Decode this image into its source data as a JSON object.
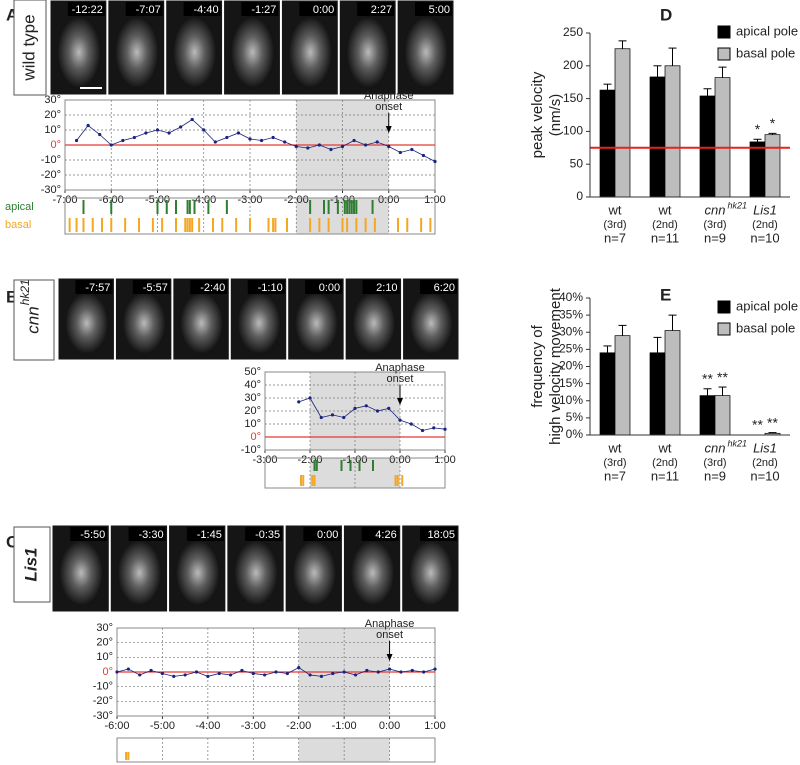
{
  "panels": [
    {
      "label": "A",
      "genotype": "wild type",
      "frames": [
        "-12:22",
        "-7:07",
        "-4:40",
        "-1:27",
        "0:00",
        "2:27",
        "5:00"
      ]
    },
    {
      "label": "B",
      "genotype": "cnn",
      "genotype_sup": "hk21",
      "frames": [
        "-7:57",
        "-5:57",
        "-2:40",
        "-1:10",
        "0:00",
        "2:10",
        "6:20"
      ]
    },
    {
      "label": "C",
      "genotype": "Lis1",
      "frames": [
        "-5:50",
        "-3:30",
        "-1:45",
        "-0:35",
        "0:00",
        "4:26",
        "18:05"
      ]
    }
  ],
  "chart_data": [
    {
      "type": "line",
      "x": [
        -6.75,
        -6.5,
        -6.25,
        -6,
        -5.75,
        -5.5,
        -5.25,
        -5,
        -4.75,
        -4.5,
        -4.25,
        -4,
        -3.75,
        -3.5,
        -3.25,
        -3,
        -2.75,
        -2.5,
        -2.25,
        -2,
        -1.75,
        -1.5,
        -1.25,
        -1,
        -0.75,
        -0.5,
        -0.25,
        0,
        0.25,
        0.5,
        0.75,
        1
      ],
      "values": [
        3,
        13,
        7,
        0,
        3,
        5,
        8,
        10,
        8,
        12,
        17,
        10,
        2,
        5,
        8,
        4,
        3,
        5,
        2,
        -1,
        -2,
        0,
        -3,
        -1,
        3,
        0,
        2,
        -1,
        -5,
        -3,
        -7,
        -11
      ],
      "color": "#1a237e",
      "xlim": [
        -7,
        1
      ],
      "xticks": [
        {
          "value": -7,
          "label": "-7:00"
        },
        {
          "value": -6,
          "label": "-6:00"
        },
        {
          "value": -5,
          "label": "-5:00"
        },
        {
          "value": -4,
          "label": "-4:00"
        },
        {
          "value": -3,
          "label": "-3:00"
        },
        {
          "value": -2,
          "label": "-2:00"
        },
        {
          "value": -1,
          "label": "-1:00"
        },
        {
          "value": 0,
          "label": "0:00"
        },
        {
          "value": 1,
          "label": "1:00"
        }
      ],
      "ylim": [
        -30,
        30
      ],
      "yticks": [
        {
          "value": 30,
          "label": "30°"
        },
        {
          "value": 20,
          "label": "20°"
        },
        {
          "value": 10,
          "label": "10°"
        },
        {
          "value": 0,
          "label": "0°"
        },
        {
          "value": -10,
          "label": "-10°"
        },
        {
          "value": -20,
          "label": "-20°"
        },
        {
          "value": -30,
          "label": "-30°"
        }
      ],
      "grid": true,
      "ref_line": {
        "value": 0,
        "color": "#e53935"
      },
      "shade_x": [
        -2,
        0
      ],
      "onset_x": 0,
      "annotation": [
        "Anaphase",
        "onset"
      ],
      "events": [
        {
          "name": "apical",
          "color": "#2e7d32",
          "times": [
            -6.6,
            -6.0,
            -5.0,
            -4.8,
            -4.6,
            -4.35,
            -4.3,
            -4.2,
            -3.9,
            -3.5,
            -1.7,
            -1.4,
            -1.3,
            -1.1,
            -0.95,
            -0.9,
            -0.85,
            -0.8,
            -0.75,
            -0.7,
            -0.35
          ]
        },
        {
          "name": "basal",
          "color": "#f5a623",
          "times": [
            -6.9,
            -6.75,
            -6.6,
            -6.4,
            -6.2,
            -6.0,
            -5.7,
            -5.4,
            -5.1,
            -4.9,
            -4.6,
            -4.4,
            -4.35,
            -4.3,
            -4.25,
            -4.1,
            -3.8,
            -3.6,
            -3.3,
            -3.0,
            -2.6,
            -2.5,
            -2.45,
            -2.2,
            -1.7,
            -1.5,
            -1.3,
            -1.0,
            -0.9,
            -0.7,
            -0.5,
            -0.3,
            0.2,
            0.4,
            0.7,
            0.9
          ]
        }
      ]
    },
    {
      "type": "line",
      "x": [
        -2.25,
        -2,
        -1.75,
        -1.5,
        -1.25,
        -1,
        -0.75,
        -0.5,
        -0.25,
        0,
        0.25,
        0.5,
        0.75,
        1
      ],
      "values": [
        27,
        30,
        15,
        17,
        15,
        22,
        24,
        20,
        22,
        13,
        10,
        5,
        7,
        6
      ],
      "color": "#1a237e",
      "xlim": [
        -3,
        1
      ],
      "xticks": [
        {
          "value": -3,
          "label": "-3:00"
        },
        {
          "value": -2,
          "label": "-2:00"
        },
        {
          "value": -1,
          "label": "-1:00"
        },
        {
          "value": 0,
          "label": "0:00"
        },
        {
          "value": 1,
          "label": "1:00"
        }
      ],
      "ylim": [
        -10,
        50
      ],
      "yticks": [
        {
          "value": 50,
          "label": "50°"
        },
        {
          "value": 40,
          "label": "40°"
        },
        {
          "value": 30,
          "label": "30°"
        },
        {
          "value": 20,
          "label": "20°"
        },
        {
          "value": 10,
          "label": "10°"
        },
        {
          "value": 0,
          "label": "0°"
        },
        {
          "value": -10,
          "label": "-10°"
        }
      ],
      "grid": true,
      "ref_line": {
        "value": 0,
        "color": "#e53935"
      },
      "shade_x": [
        -2,
        0
      ],
      "onset_x": 0,
      "annotation": [
        "Anaphase",
        "onset"
      ],
      "events": [
        {
          "color": "#2e7d32",
          "times": [
            -1.9,
            -1.85,
            -1.3,
            -1.1,
            -0.9,
            -0.6
          ]
        },
        {
          "color": "#f5a623",
          "times": [
            -2.2,
            -2.15,
            -1.95,
            -1.9,
            -0.1,
            -0.05,
            0.05
          ]
        }
      ]
    },
    {
      "type": "line",
      "x": [
        -6,
        -5.75,
        -5.5,
        -5.25,
        -5,
        -4.75,
        -4.5,
        -4.25,
        -4,
        -3.75,
        -3.5,
        -3.25,
        -3,
        -2.75,
        -2.5,
        -2.25,
        -2,
        -1.75,
        -1.5,
        -1.25,
        -1,
        -0.75,
        -0.5,
        -0.25,
        0,
        0.25,
        0.5,
        0.75,
        1
      ],
      "values": [
        0,
        2,
        -2,
        1,
        -1,
        -3,
        -2,
        0,
        -3,
        -1,
        -2,
        1,
        -1,
        -2,
        0,
        -1,
        3,
        -2,
        -3,
        -1,
        0,
        -2,
        1,
        0,
        2,
        0,
        1,
        0,
        2
      ],
      "color": "#1a237e",
      "xlim": [
        -6,
        1
      ],
      "xticks": [
        {
          "value": -6,
          "label": "-6:00"
        },
        {
          "value": -5,
          "label": "-5:00"
        },
        {
          "value": -4,
          "label": "-4:00"
        },
        {
          "value": -3,
          "label": "-3:00"
        },
        {
          "value": -2,
          "label": "-2:00"
        },
        {
          "value": -1,
          "label": "-1:00"
        },
        {
          "value": 0,
          "label": "0:00"
        },
        {
          "value": 1,
          "label": "1:00"
        }
      ],
      "ylim": [
        -30,
        30
      ],
      "yticks": [
        {
          "value": 30,
          "label": "30°"
        },
        {
          "value": 20,
          "label": "20°"
        },
        {
          "value": 10,
          "label": "10°"
        },
        {
          "value": 0,
          "label": "0°"
        },
        {
          "value": -10,
          "label": "-10°"
        },
        {
          "value": -20,
          "label": "-20°"
        },
        {
          "value": -30,
          "label": "-30°"
        }
      ],
      "grid": true,
      "ref_line": {
        "value": 0,
        "color": "#e53935"
      },
      "shade_x": [
        -2,
        0
      ],
      "onset_x": 0,
      "annotation": [
        "Anaphase",
        "onset"
      ],
      "events": [
        {
          "color": "#2e7d32",
          "times": []
        },
        {
          "color": "#f5a623",
          "times": [
            -5.8,
            -5.75
          ]
        }
      ]
    },
    {
      "type": "bar",
      "panel": "D",
      "ylabel": [
        "peak velocity",
        "(nm/s)"
      ],
      "categories": [
        "wt",
        "wt",
        "cnn",
        "Lis1"
      ],
      "category_sup": [
        null,
        null,
        "hk21",
        null
      ],
      "generations": [
        "(3rd)",
        "(2nd)",
        "(3rd)",
        "(2nd)"
      ],
      "n": [
        "n=7",
        "n=11",
        "n=9",
        "n=10"
      ],
      "series": [
        {
          "name": "apical pole",
          "color": "#000000",
          "values": [
            163,
            183,
            154,
            84
          ],
          "errors": [
            9,
            17,
            11,
            4
          ],
          "marks": [
            null,
            null,
            null,
            "*"
          ]
        },
        {
          "name": "basal pole",
          "color": "#bdbdbd",
          "values": [
            226,
            200,
            182,
            95
          ],
          "errors": [
            12,
            27,
            16,
            2
          ],
          "marks": [
            null,
            null,
            null,
            "*"
          ]
        }
      ],
      "ylim": [
        0,
        250
      ],
      "yticks": [
        0,
        50,
        100,
        150,
        200,
        250
      ],
      "ref_line": {
        "value": 75,
        "color": "#e8221b"
      }
    },
    {
      "type": "bar",
      "panel": "E",
      "ylabel": [
        "frequency of",
        "high velocity movement"
      ],
      "categories": [
        "wt",
        "wt",
        "cnn",
        "Lis1"
      ],
      "category_sup": [
        null,
        null,
        "hk21",
        null
      ],
      "generations": [
        "(3rd)",
        "(2nd)",
        "(3rd)",
        "(2nd)"
      ],
      "n": [
        "n=7",
        "n=11",
        "n=9",
        "n=10"
      ],
      "series": [
        {
          "name": "apical pole",
          "color": "#000000",
          "values": [
            24,
            24,
            11.5,
            0
          ],
          "errors": [
            2,
            4.5,
            2,
            0
          ],
          "marks": [
            null,
            null,
            "**",
            "**"
          ]
        },
        {
          "name": "basal pole",
          "color": "#bdbdbd",
          "values": [
            29,
            30.5,
            11.5,
            0.5
          ],
          "errors": [
            3,
            4.5,
            2.5,
            0.2
          ],
          "marks": [
            null,
            null,
            "**",
            "**"
          ]
        }
      ],
      "ylim": [
        0,
        40
      ],
      "yticks": [
        {
          "value": 0,
          "label": "0%"
        },
        {
          "value": 5,
          "label": "5%"
        },
        {
          "value": 10,
          "label": "10%"
        },
        {
          "value": 15,
          "label": "15%"
        },
        {
          "value": 20,
          "label": "20%"
        },
        {
          "value": 25,
          "label": "25%"
        },
        {
          "value": 30,
          "label": "30%"
        },
        {
          "value": 35,
          "label": "35%"
        },
        {
          "value": 40,
          "label": "40%"
        }
      ]
    }
  ]
}
